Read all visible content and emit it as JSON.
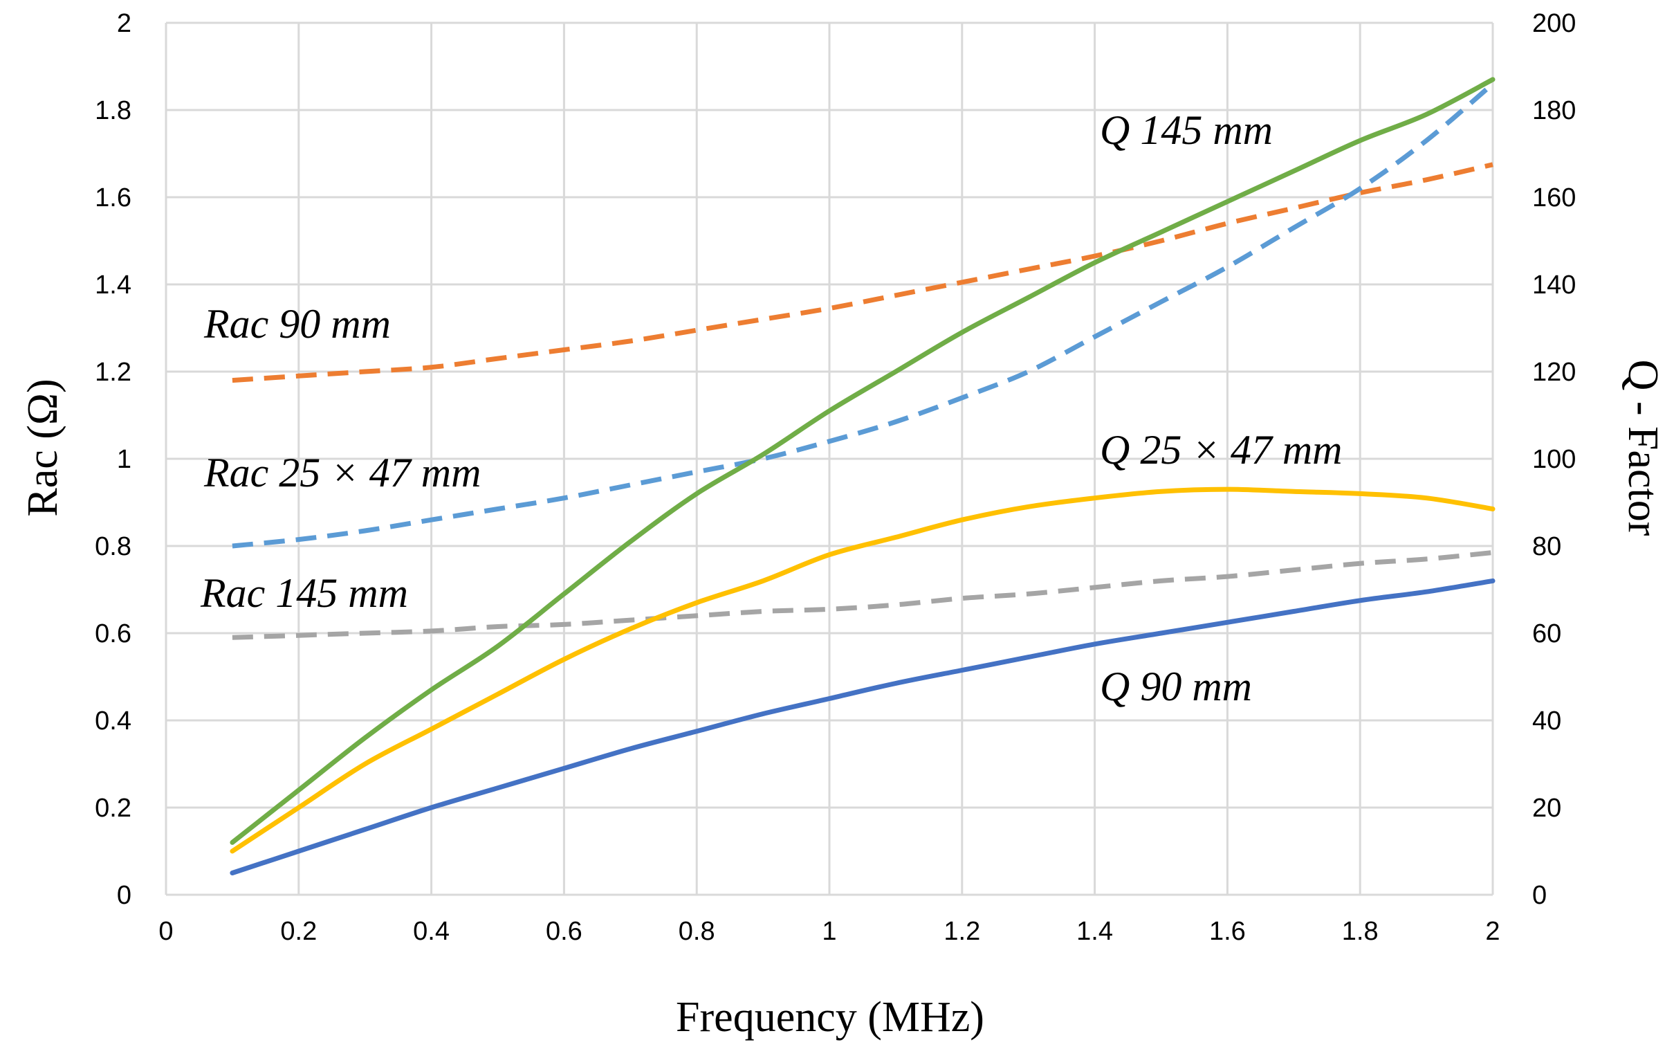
{
  "chart_data": {
    "type": "line",
    "title": "",
    "xlabel": "Frequency (MHz)",
    "ylabel_left": "Rac (Ω)",
    "ylabel_right": "Q - Factor",
    "xlim": [
      0,
      2
    ],
    "ylim_left": [
      0,
      2
    ],
    "ylim_right": [
      0,
      200
    ],
    "x_ticks": [
      "0",
      "0.2",
      "0.4",
      "0.6",
      "0.8",
      "1",
      "1.2",
      "1.4",
      "1.6",
      "1.8",
      "2"
    ],
    "y_left_ticks": [
      "0",
      "0.2",
      "0.4",
      "0.6",
      "0.8",
      "1",
      "1.2",
      "1.4",
      "1.6",
      "1.8",
      "2"
    ],
    "y_right_ticks": [
      "0",
      "20",
      "40",
      "60",
      "80",
      "100",
      "120",
      "140",
      "160",
      "180",
      "200"
    ],
    "grid": true,
    "series": [
      {
        "name": "Rac 90 mm",
        "axis": "left",
        "style": "dashed",
        "color": "#ED7D31",
        "x": [
          0.1,
          0.2,
          0.3,
          0.4,
          0.5,
          0.6,
          0.7,
          0.8,
          0.9,
          1.0,
          1.1,
          1.2,
          1.3,
          1.4,
          1.5,
          1.6,
          1.7,
          1.8,
          1.9,
          2.0
        ],
        "values": [
          1.18,
          1.19,
          1.2,
          1.21,
          1.23,
          1.25,
          1.27,
          1.295,
          1.32,
          1.345,
          1.375,
          1.405,
          1.435,
          1.465,
          1.5,
          1.54,
          1.575,
          1.61,
          1.64,
          1.675
        ]
      },
      {
        "name": "Rac 25 × 47 mm",
        "axis": "left",
        "style": "dashed",
        "color": "#5B9BD5",
        "x": [
          0.1,
          0.2,
          0.3,
          0.4,
          0.5,
          0.6,
          0.7,
          0.8,
          0.9,
          1.0,
          1.1,
          1.2,
          1.3,
          1.4,
          1.5,
          1.6,
          1.7,
          1.8,
          1.9,
          2.0
        ],
        "values": [
          0.8,
          0.815,
          0.835,
          0.86,
          0.885,
          0.91,
          0.94,
          0.97,
          1.0,
          1.04,
          1.085,
          1.14,
          1.2,
          1.28,
          1.36,
          1.44,
          1.53,
          1.62,
          1.73,
          1.86
        ]
      },
      {
        "name": "Rac 145 mm",
        "axis": "left",
        "style": "dashed",
        "color": "#A5A5A5",
        "x": [
          0.1,
          0.2,
          0.3,
          0.4,
          0.5,
          0.6,
          0.7,
          0.8,
          0.9,
          1.0,
          1.1,
          1.2,
          1.3,
          1.4,
          1.5,
          1.6,
          1.7,
          1.8,
          1.9,
          2.0
        ],
        "values": [
          0.59,
          0.595,
          0.6,
          0.605,
          0.615,
          0.62,
          0.63,
          0.64,
          0.65,
          0.655,
          0.665,
          0.68,
          0.69,
          0.705,
          0.72,
          0.73,
          0.745,
          0.76,
          0.77,
          0.785
        ]
      },
      {
        "name": "Q 145 mm",
        "axis": "right",
        "style": "solid",
        "color": "#70AD47",
        "x": [
          0.1,
          0.2,
          0.3,
          0.4,
          0.5,
          0.6,
          0.7,
          0.8,
          0.9,
          1.0,
          1.1,
          1.2,
          1.3,
          1.4,
          1.5,
          1.6,
          1.7,
          1.8,
          1.9,
          2.0
        ],
        "values": [
          12,
          24,
          36,
          47,
          57,
          69,
          81,
          92,
          101,
          111,
          120,
          129,
          137,
          145,
          152,
          159,
          166,
          173,
          179,
          187
        ]
      },
      {
        "name": "Q 25 × 47 mm",
        "axis": "right",
        "style": "solid",
        "color": "#FFC000",
        "x": [
          0.1,
          0.2,
          0.3,
          0.4,
          0.5,
          0.6,
          0.7,
          0.8,
          0.9,
          1.0,
          1.1,
          1.2,
          1.3,
          1.4,
          1.5,
          1.6,
          1.7,
          1.8,
          1.9,
          2.0
        ],
        "values": [
          10,
          20,
          30,
          38,
          46,
          54,
          61,
          67,
          72,
          78,
          82,
          86,
          89,
          91,
          92.5,
          93,
          92.5,
          92,
          91,
          88.5
        ]
      },
      {
        "name": "Q 90 mm",
        "axis": "right",
        "style": "solid",
        "color": "#4472C4",
        "x": [
          0.1,
          0.2,
          0.3,
          0.4,
          0.5,
          0.6,
          0.7,
          0.8,
          0.9,
          1.0,
          1.1,
          1.2,
          1.3,
          1.4,
          1.5,
          1.6,
          1.7,
          1.8,
          1.9,
          2.0
        ],
        "values": [
          5,
          10,
          15,
          20,
          24.5,
          29,
          33.5,
          37.5,
          41.5,
          45,
          48.5,
          51.5,
          54.5,
          57.5,
          60,
          62.5,
          65,
          67.5,
          69.5,
          72
        ]
      }
    ],
    "annotations": [
      {
        "text": "Rac 90 mm",
        "series": "Rac 90 mm"
      },
      {
        "text": "Rac 25 × 47 mm",
        "series": "Rac 25 × 47 mm"
      },
      {
        "text": "Rac 145 mm",
        "series": "Rac 145 mm"
      },
      {
        "text": "Q 145 mm",
        "series": "Q 145 mm"
      },
      {
        "text": "Q 25 × 47 mm",
        "series": "Q 25 × 47 mm"
      },
      {
        "text": "Q 90 mm",
        "series": "Q 90 mm"
      }
    ]
  }
}
